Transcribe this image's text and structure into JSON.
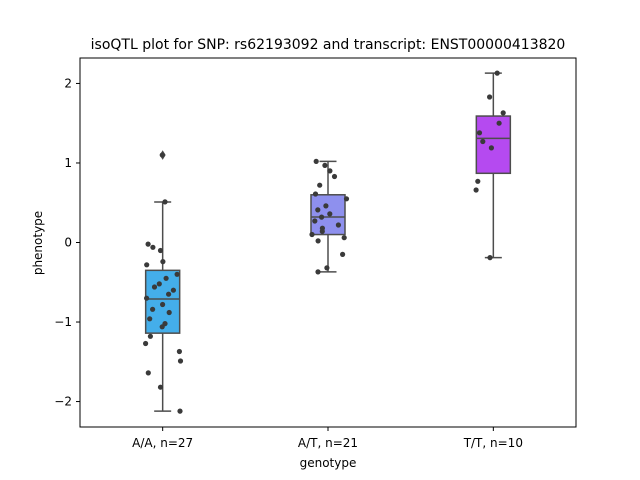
{
  "chart_data": {
    "type": "box",
    "title": "isoQTL plot for SNP: rs62193092 and transcript: ENST00000413820",
    "xlabel": "genotype",
    "ylabel": "phenotype",
    "ylim": [
      -2.32,
      2.32
    ],
    "yticks": [
      -2,
      -1,
      0,
      1,
      2
    ],
    "yticklabels": [
      "−2",
      "−1",
      "0",
      "1",
      "2"
    ],
    "grid": false,
    "categories": [
      "A/A, n=27",
      "A/T, n=21",
      "T/T, n=10"
    ],
    "series": [
      {
        "category": "A/A, n=27",
        "color": "#44aeea",
        "whisker_low": -2.12,
        "q1": -1.14,
        "median": -0.71,
        "q3": -0.35,
        "whisker_high": 0.51,
        "outliers": [
          1.1
        ],
        "points": [
          1.1,
          0.51,
          -0.02,
          -0.06,
          -0.1,
          -0.24,
          -0.28,
          -0.4,
          -0.45,
          -0.52,
          -0.56,
          -0.6,
          -0.65,
          -0.7,
          -0.78,
          -0.84,
          -0.88,
          -0.96,
          -1.02,
          -1.06,
          -1.18,
          -1.27,
          -1.37,
          -1.49,
          -1.64,
          -1.82,
          -2.12
        ]
      },
      {
        "category": "A/T, n=21",
        "color": "#8e90ee",
        "whisker_low": -0.37,
        "q1": 0.1,
        "median": 0.32,
        "q3": 0.6,
        "whisker_high": 1.02,
        "outliers": [],
        "points": [
          1.02,
          0.97,
          0.9,
          0.83,
          0.72,
          0.61,
          0.55,
          0.46,
          0.41,
          0.36,
          0.32,
          0.27,
          0.22,
          0.18,
          0.14,
          0.1,
          0.06,
          0.02,
          -0.15,
          -0.32,
          -0.37
        ]
      },
      {
        "category": "T/T, n=10",
        "color": "#b54af0",
        "whisker_low": -0.19,
        "q1": 0.87,
        "median": 1.31,
        "q3": 1.59,
        "whisker_high": 2.13,
        "outliers": [],
        "points": [
          2.13,
          1.83,
          1.63,
          1.5,
          1.38,
          1.27,
          1.19,
          0.77,
          0.66,
          -0.19
        ]
      }
    ]
  }
}
